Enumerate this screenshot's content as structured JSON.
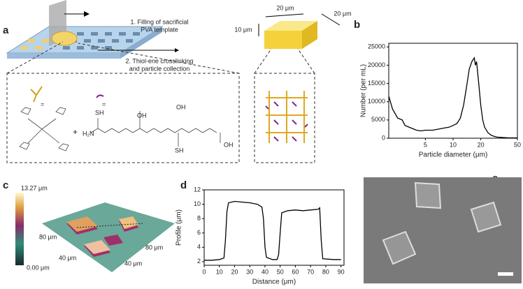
{
  "panel_labels": [
    "a",
    "b",
    "c",
    "d",
    "e"
  ],
  "panel_a": {
    "step_1": [
      "1. Filling of sacrificial",
      "PVA template"
    ],
    "step_2": [
      "2. Thiol-ene crosslinking",
      "and particle collection"
    ],
    "dimensions": [
      "20 μm",
      "20 μm",
      "10 μm"
    ],
    "legend_equals": [
      "=",
      "="
    ],
    "plus": "+",
    "groups": [
      "SH",
      "H₂N",
      "OH",
      "OH",
      "SH",
      "OH"
    ]
  },
  "panel_c": {
    "scale_max": "13.27 μm",
    "scale_min": "0.00 μm",
    "axis_labels": [
      "80 μm",
      "40 μm",
      "80 μm",
      "40 μm"
    ]
  },
  "chart_data": [
    {
      "type": "line",
      "x_label": "Particle diameter (μm)",
      "y_label": "Number (per mL)",
      "log_x": true,
      "xlim": [
        2,
        50
      ],
      "xticks": [
        5,
        10,
        20,
        50
      ],
      "ylim": [
        0,
        26000
      ],
      "yticks": [
        0,
        5000,
        10000,
        15000,
        20000,
        25000
      ],
      "color": "#000000",
      "x": [
        2,
        2.2,
        2.5,
        2.8,
        3,
        3.5,
        4,
        4.5,
        5,
        6,
        7,
        8,
        9,
        10,
        11,
        12,
        13,
        14,
        15,
        16,
        17,
        17.5,
        18,
        19,
        20,
        21,
        22,
        24,
        26,
        28,
        30,
        35,
        40,
        50
      ],
      "values": [
        11500,
        8000,
        5500,
        5000,
        3500,
        2800,
        2200,
        2000,
        2200,
        2200,
        2500,
        2800,
        3000,
        3500,
        4000,
        5500,
        9000,
        14000,
        19000,
        21000,
        22000,
        20000,
        21000,
        15000,
        9000,
        5000,
        3000,
        1500,
        800,
        500,
        300,
        200,
        100,
        100
      ]
    },
    {
      "type": "line",
      "x_label": "Distance (μm)",
      "y_label": "Profile (μm)",
      "log_x": false,
      "xlim": [
        0,
        92
      ],
      "xticks": [
        0,
        10,
        20,
        30,
        40,
        50,
        60,
        70,
        80,
        90
      ],
      "ylim": [
        1.5,
        12
      ],
      "yticks": [
        2,
        4,
        6,
        8,
        10,
        12
      ],
      "color": "#000000",
      "x": [
        0,
        5,
        10,
        13,
        14,
        15,
        16,
        20,
        25,
        30,
        35,
        38,
        39,
        40,
        41,
        45,
        48,
        49,
        50,
        51,
        55,
        60,
        65,
        70,
        75,
        76,
        77,
        78,
        85,
        90
      ],
      "values": [
        2.2,
        2.2,
        2.3,
        2.5,
        5,
        9,
        10.2,
        10.4,
        10.3,
        10.2,
        10,
        9.6,
        8,
        4,
        2.6,
        2.3,
        2.3,
        3,
        6,
        8.8,
        9.1,
        9.2,
        9.1,
        9.2,
        9.3,
        9.5,
        5,
        2.4,
        2.3,
        2.3
      ]
    }
  ]
}
